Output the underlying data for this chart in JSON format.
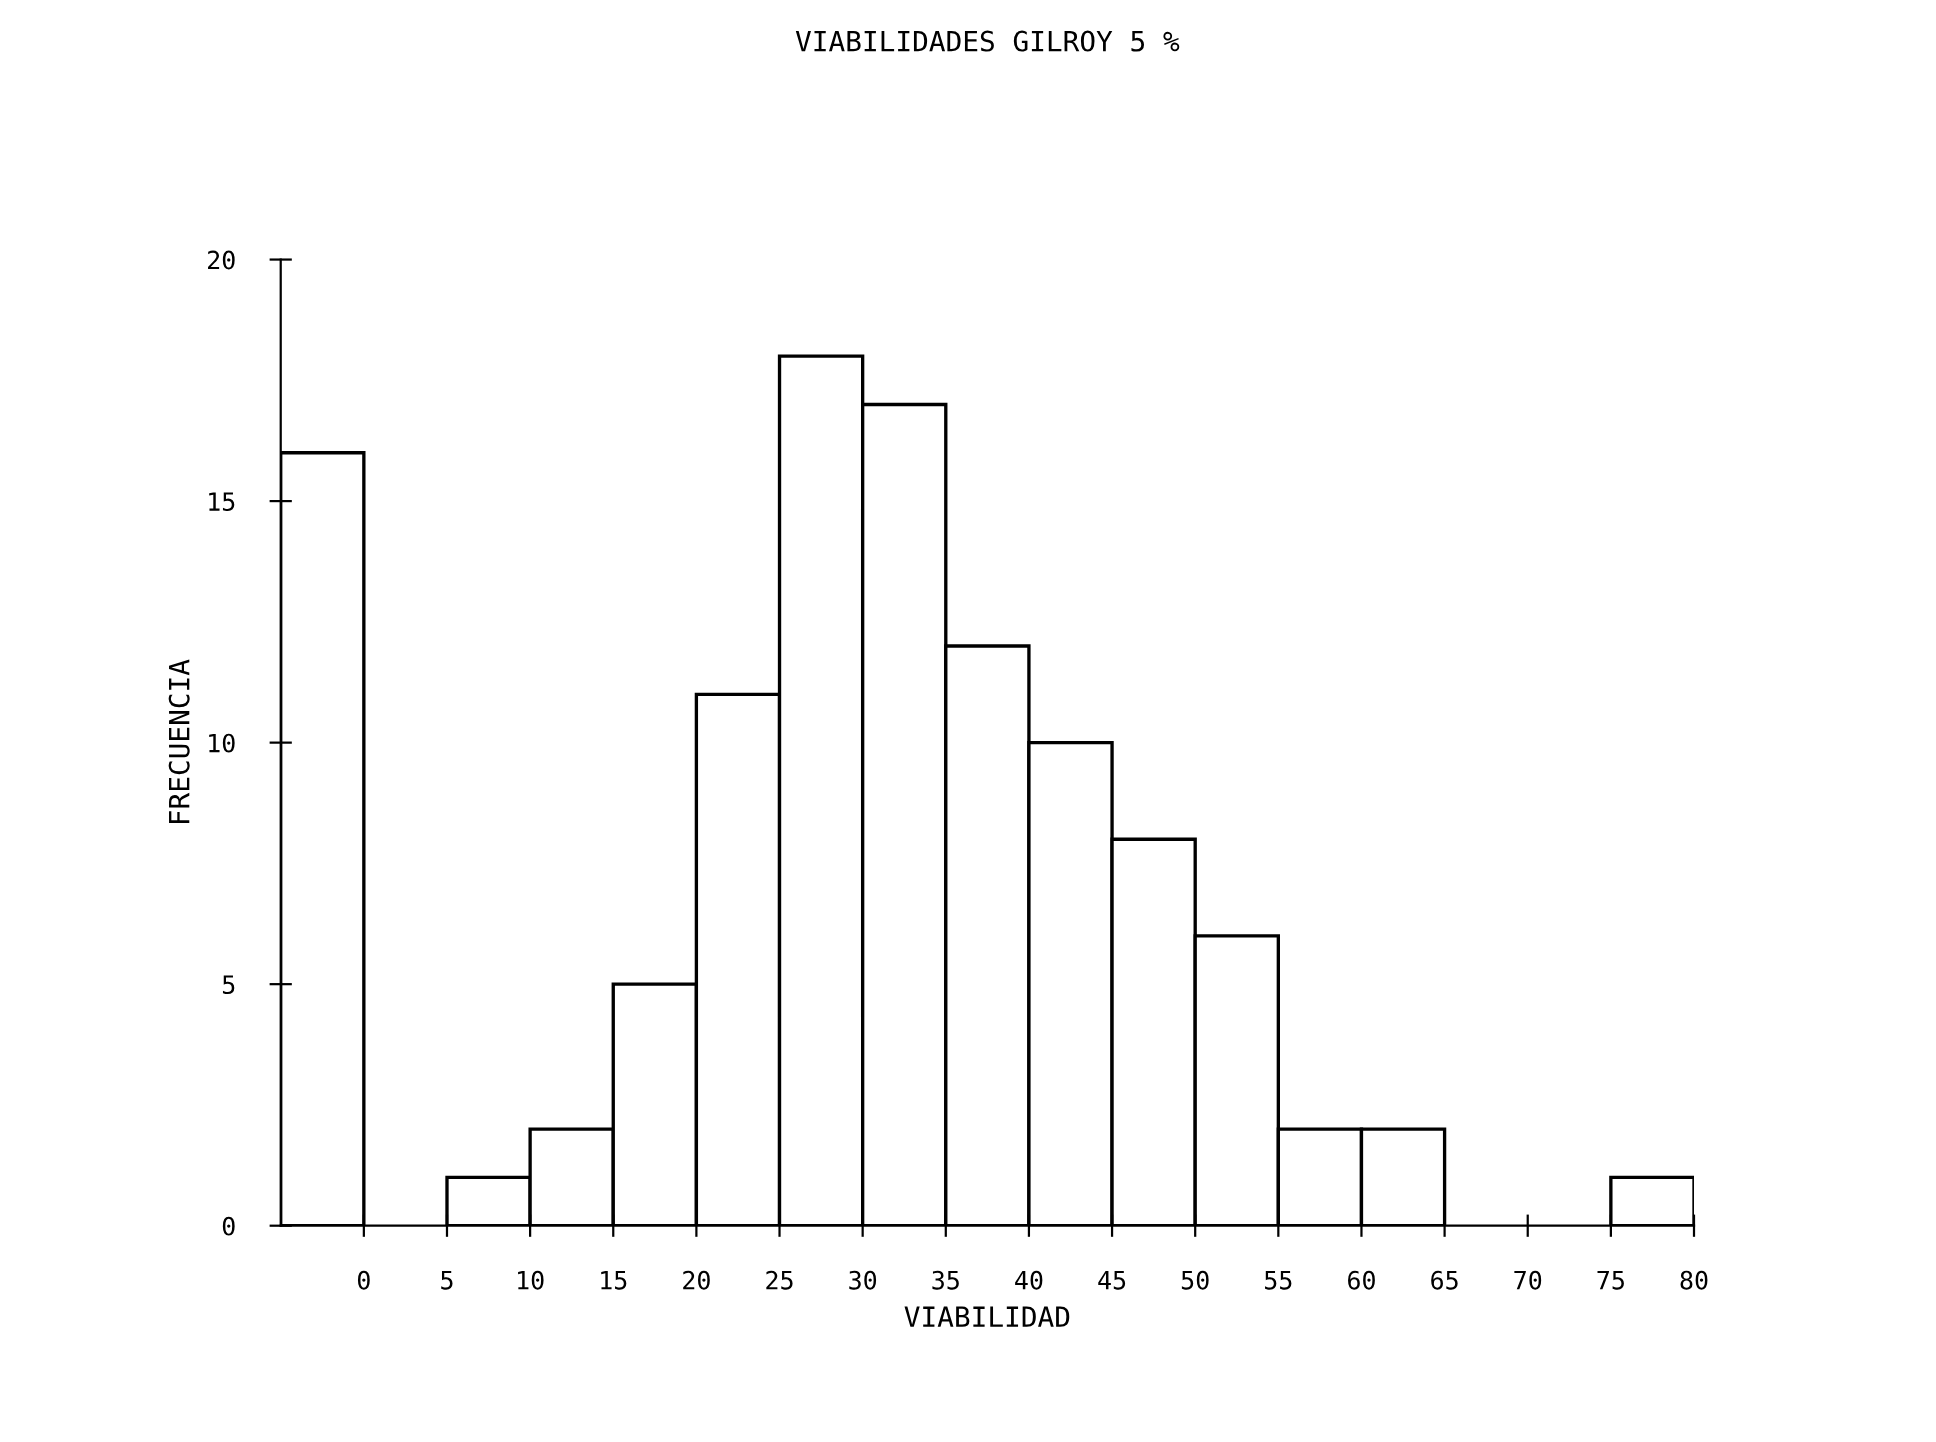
{
  "chart_data": {
    "type": "histogram",
    "title": "VIABILIDADES GILROY 5 %",
    "xlabel": "VIABILIDAD",
    "ylabel": "FRECUENCIA",
    "bins": [
      -5,
      0,
      5,
      10,
      15,
      20,
      25,
      30,
      35,
      40,
      45,
      50,
      55,
      60,
      65,
      70,
      75,
      80
    ],
    "values": [
      16,
      0,
      1,
      2,
      5,
      11,
      18,
      17,
      12,
      10,
      8,
      6,
      2,
      2,
      0,
      0,
      1
    ],
    "color": "#ffffff",
    "xlim": [
      -5,
      80
    ],
    "xticks": [
      0,
      5,
      10,
      15,
      20,
      25,
      30,
      35,
      40,
      45,
      50,
      55,
      60,
      65,
      70,
      75,
      80
    ],
    "ylim": [
      0,
      20
    ],
    "yticks": [
      0,
      5,
      10,
      15,
      20
    ],
    "grid": false
  }
}
